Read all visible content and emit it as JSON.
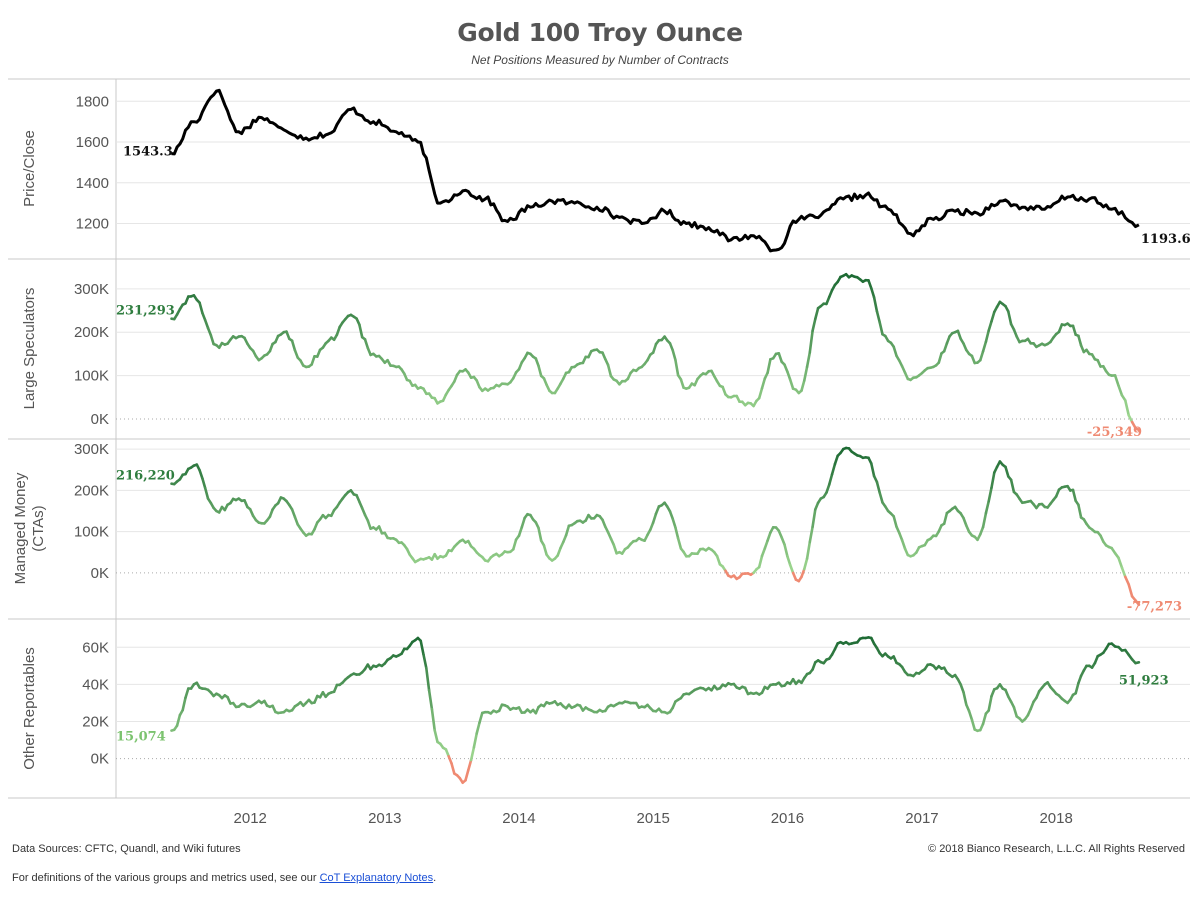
{
  "title": "Gold 100 Troy Ounce",
  "subtitle": "Net Positions Measured by Number of Contracts",
  "footer": {
    "sources": "Data Sources: CFTC, Quandl, and Wiki futures",
    "copyright": "© 2018 Bianco Research, L.L.C. All Rights Reserved",
    "definitions_prefix": "For definitions of the various groups and metrics used, see our ",
    "definitions_link": "CoT Explanatory Notes",
    "definitions_suffix": "."
  },
  "colors": {
    "price_line": "#000000",
    "positive_dark": "#1e6b34",
    "positive_light": "#9ed790",
    "negative": "#ef8a72",
    "grid": "#e6e6e6",
    "pane_border": "#c8c8c8"
  },
  "chart_data": {
    "type": "line",
    "x_axis": {
      "type": "date",
      "range": [
        "2011-01-01",
        "2018-12-31"
      ],
      "tick_labels": [
        "2012",
        "2013",
        "2014",
        "2015",
        "2016",
        "2017",
        "2018"
      ]
    },
    "x_dates": [
      "2011-06-01",
      "2011-08-01",
      "2011-10-01",
      "2011-12-01",
      "2012-02-01",
      "2012-04-01",
      "2012-06-01",
      "2012-08-01",
      "2012-10-01",
      "2012-12-01",
      "2013-02-01",
      "2013-04-01",
      "2013-06-01",
      "2013-08-01",
      "2013-10-01",
      "2013-12-01",
      "2014-02-01",
      "2014-04-01",
      "2014-06-01",
      "2014-08-01",
      "2014-10-01",
      "2014-12-01",
      "2015-02-01",
      "2015-04-01",
      "2015-06-01",
      "2015-08-01",
      "2015-10-01",
      "2015-12-01",
      "2016-02-01",
      "2016-04-01",
      "2016-06-01",
      "2016-08-01",
      "2016-10-01",
      "2016-12-01",
      "2017-02-01",
      "2017-04-01",
      "2017-06-01",
      "2017-08-01",
      "2017-10-01",
      "2017-12-01",
      "2018-02-01",
      "2018-04-01",
      "2018-06-01",
      "2018-08-14"
    ],
    "panels": [
      {
        "ylabel": "Price/Close",
        "yticks": [
          1200,
          1400,
          1600,
          1800
        ],
        "ylim": [
          1060,
          1880
        ],
        "start_label": "1543.3",
        "end_label": "1193.6",
        "color_mode": "price",
        "values": [
          1543.3,
          1700,
          1850,
          1650,
          1720,
          1660,
          1620,
          1640,
          1760,
          1700,
          1650,
          1600,
          1300,
          1360,
          1320,
          1210,
          1280,
          1310,
          1300,
          1280,
          1230,
          1200,
          1260,
          1200,
          1180,
          1120,
          1140,
          1070,
          1220,
          1240,
          1320,
          1340,
          1270,
          1150,
          1220,
          1260,
          1250,
          1310,
          1280,
          1270,
          1330,
          1320,
          1270,
          1193.6
        ]
      },
      {
        "ylabel": "Large Speculators",
        "yticks": [
          0,
          100000,
          200000,
          300000
        ],
        "ytick_labels": [
          "0K",
          "100K",
          "200K",
          "300K"
        ],
        "ylim": [
          -30000,
          355000
        ],
        "start_label": "231,293",
        "end_label": "-25,349",
        "color_mode": "net",
        "values": [
          231293,
          285000,
          170000,
          190000,
          140000,
          200000,
          120000,
          180000,
          240000,
          150000,
          120000,
          70000,
          40000,
          110000,
          70000,
          80000,
          150000,
          60000,
          120000,
          160000,
          80000,
          120000,
          190000,
          70000,
          110000,
          50000,
          30000,
          150000,
          60000,
          260000,
          330000,
          320000,
          180000,
          90000,
          120000,
          200000,
          130000,
          270000,
          180000,
          170000,
          220000,
          150000,
          100000,
          -25349
        ]
      },
      {
        "ylabel": "Managed Money (CTAs)",
        "ylabel_lines": [
          "Managed Money",
          "(CTAs)"
        ],
        "yticks": [
          0,
          100000,
          200000,
          300000
        ],
        "ytick_labels": [
          "0K",
          "100K",
          "200K",
          "300K"
        ],
        "ylim": [
          -95000,
          310000
        ],
        "start_label": "216,220",
        "end_label": "-77,273",
        "color_mode": "net",
        "values": [
          216220,
          260000,
          150000,
          180000,
          120000,
          180000,
          90000,
          140000,
          200000,
          110000,
          80000,
          30000,
          40000,
          80000,
          30000,
          50000,
          140000,
          30000,
          120000,
          140000,
          50000,
          80000,
          170000,
          40000,
          60000,
          -10000,
          0,
          110000,
          -20000,
          180000,
          300000,
          280000,
          150000,
          40000,
          90000,
          160000,
          80000,
          270000,
          170000,
          160000,
          210000,
          110000,
          60000,
          -77273
        ]
      },
      {
        "ylabel": "Other Reportables",
        "yticks": [
          0,
          20000,
          40000,
          60000
        ],
        "ytick_labels": [
          "0K",
          "20K",
          "40K",
          "60K"
        ],
        "ylim": [
          -18000,
          72000
        ],
        "start_label": "15,074",
        "end_label": "51,923",
        "color_mode": "level",
        "values": [
          15074,
          40000,
          35000,
          28000,
          30000,
          25000,
          30000,
          35000,
          45000,
          50000,
          55000,
          65000,
          8000,
          -13000,
          25000,
          28000,
          25000,
          30000,
          28000,
          25000,
          30000,
          28000,
          25000,
          35000,
          38000,
          40000,
          35000,
          40000,
          42000,
          52000,
          62000,
          65000,
          55000,
          45000,
          50000,
          45000,
          15000,
          40000,
          20000,
          40000,
          30000,
          50000,
          62000,
          51923
        ]
      }
    ]
  }
}
